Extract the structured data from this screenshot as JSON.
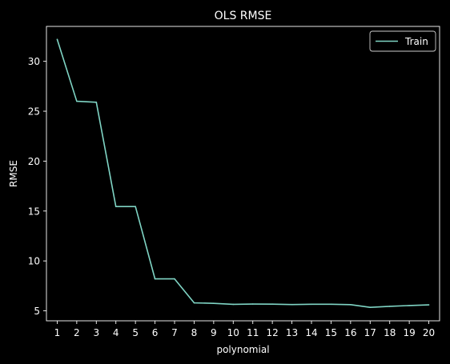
{
  "chart_data": {
    "type": "line",
    "title": "OLS RMSE",
    "xlabel": "polynomial",
    "ylabel": "RMSE",
    "x": [
      1,
      2,
      3,
      4,
      5,
      6,
      7,
      8,
      9,
      10,
      11,
      12,
      13,
      14,
      15,
      16,
      17,
      18,
      19,
      20
    ],
    "series": [
      {
        "name": "Train",
        "color": "#7fd4c4",
        "values": [
          32.2,
          26.0,
          25.9,
          15.45,
          15.45,
          8.2,
          8.2,
          5.8,
          5.75,
          5.65,
          5.68,
          5.67,
          5.63,
          5.66,
          5.66,
          5.62,
          5.35,
          5.45,
          5.53,
          5.6
        ]
      }
    ],
    "xlim": [
      0.45,
      20.55
    ],
    "ylim": [
      4.0,
      33.5
    ],
    "yticks": [
      5,
      10,
      15,
      20,
      25,
      30
    ],
    "xticks": [
      1,
      2,
      3,
      4,
      5,
      6,
      7,
      8,
      9,
      10,
      11,
      12,
      13,
      14,
      15,
      16,
      17,
      18,
      19,
      20
    ],
    "grid": false,
    "legend_position": "top-right",
    "background": "#000000",
    "foreground": "#ffffff"
  }
}
